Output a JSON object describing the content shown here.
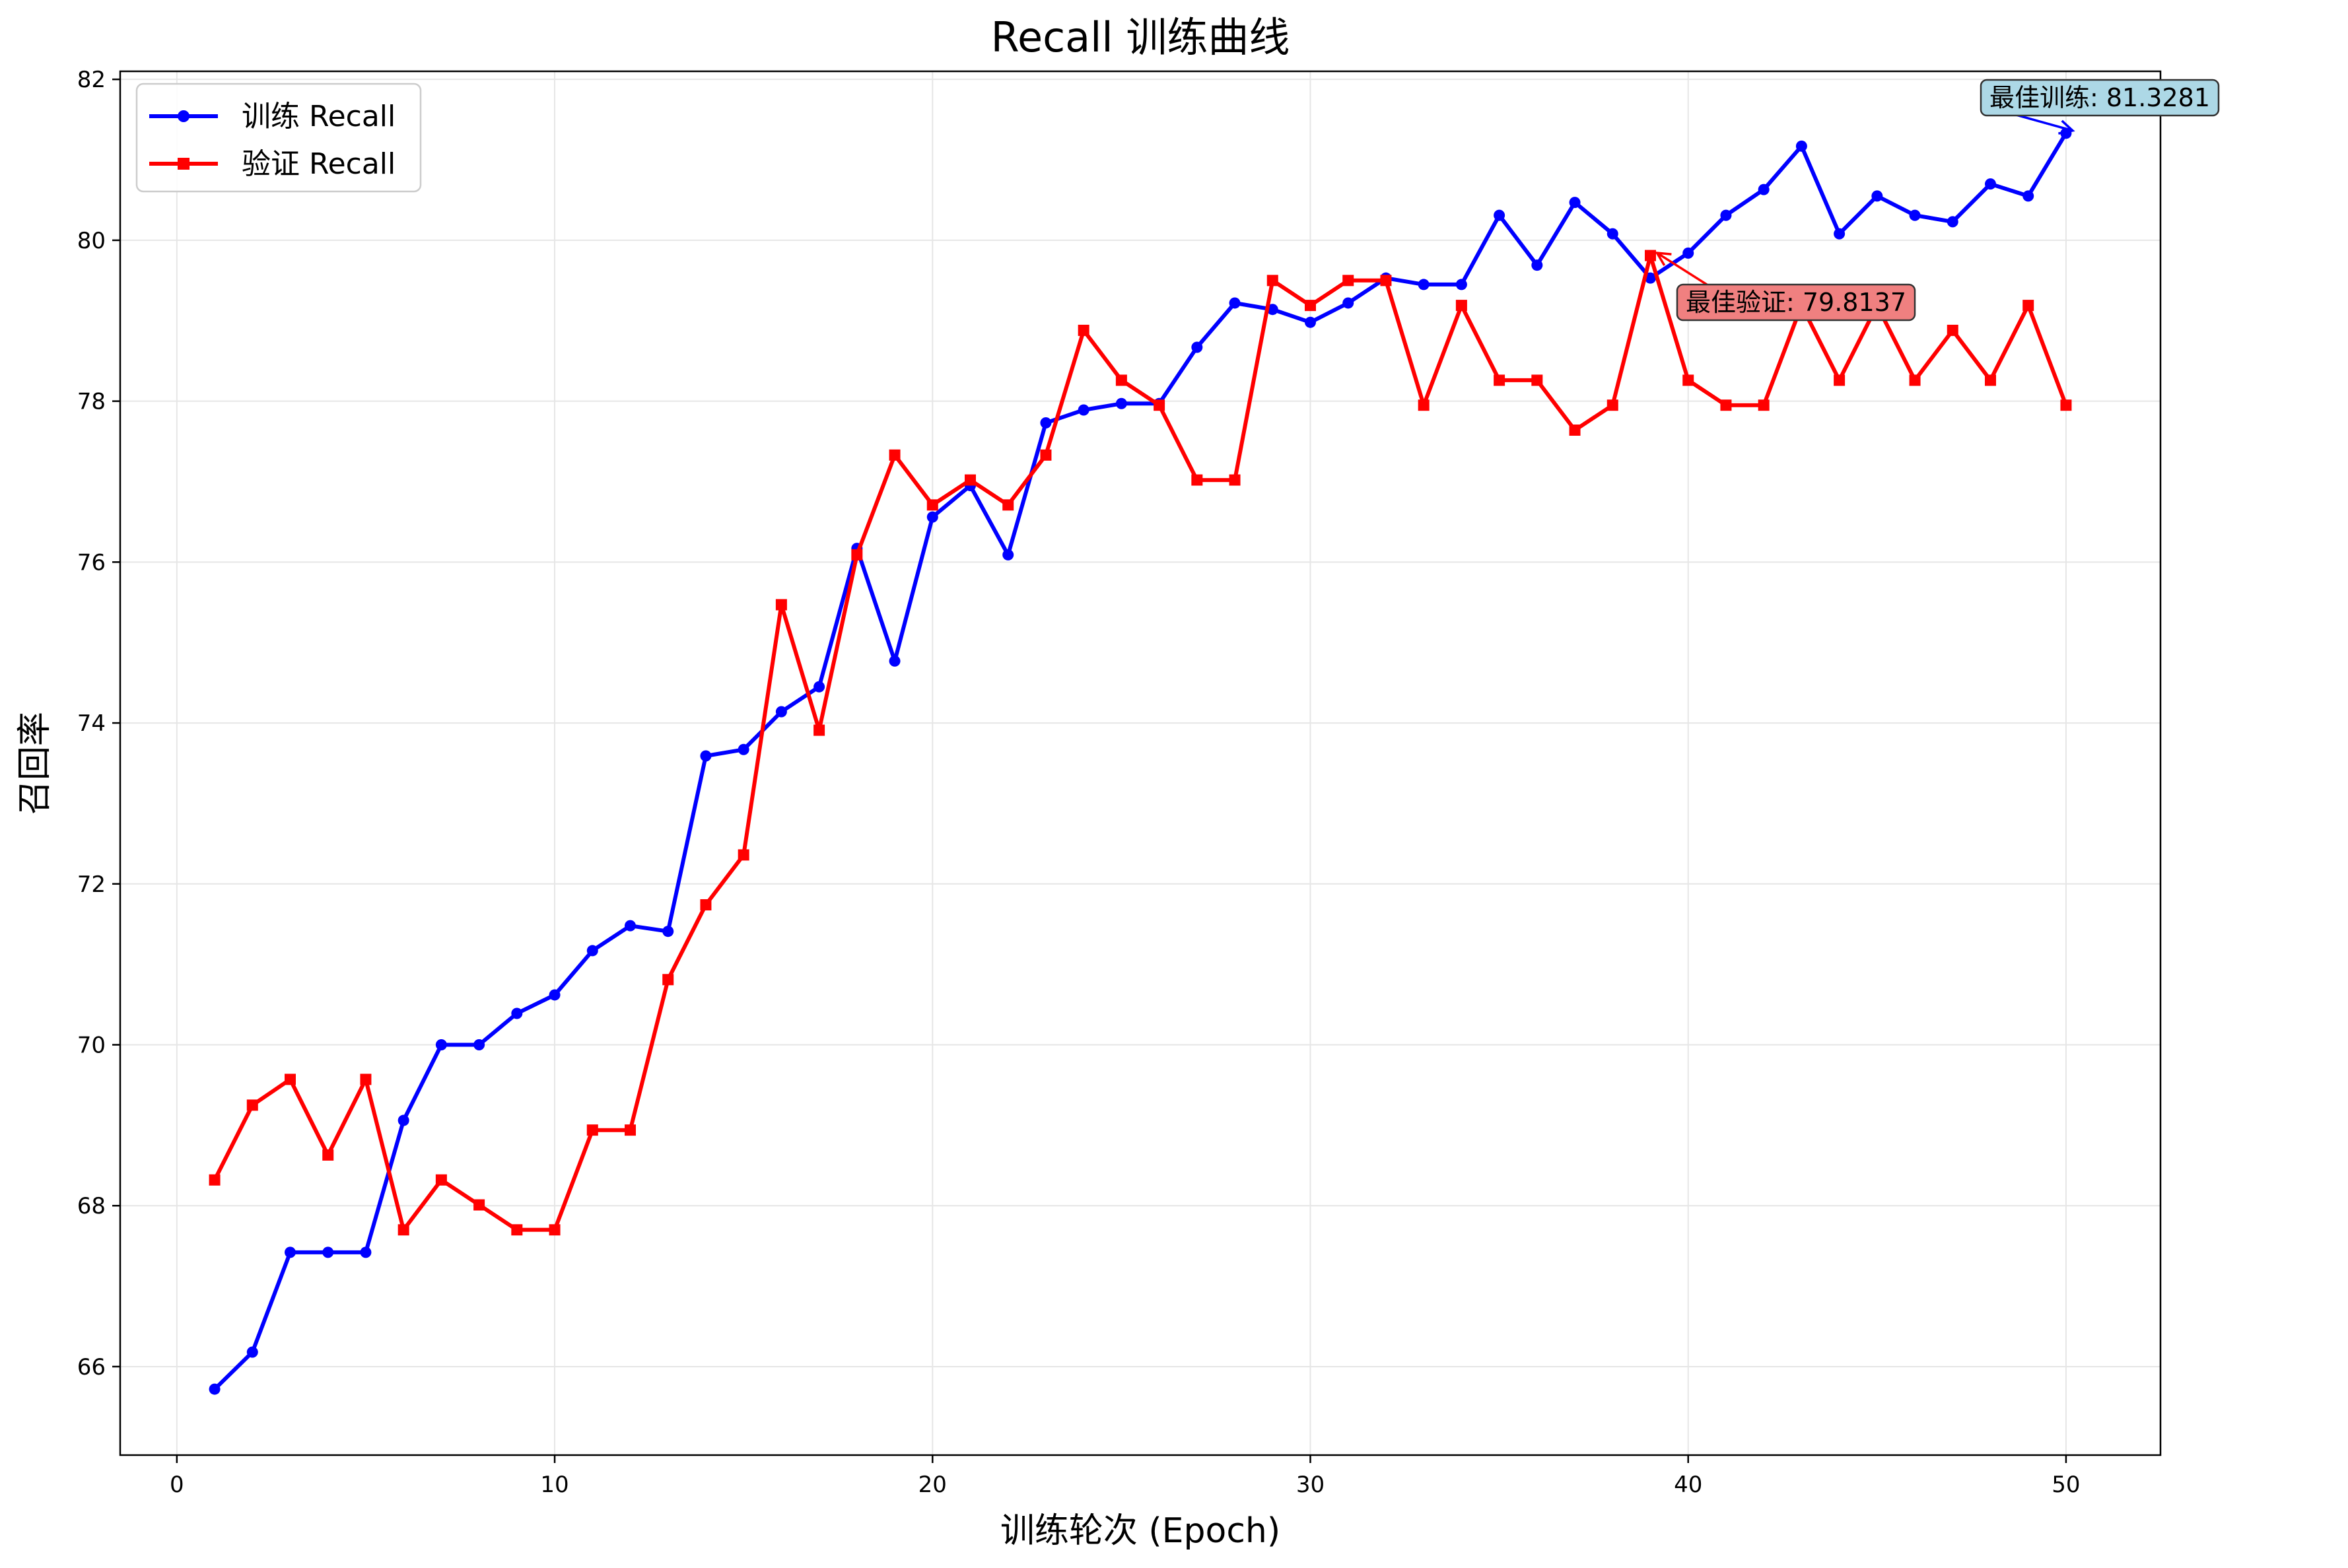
{
  "chart_data": {
    "type": "line",
    "title": "Recall 训练曲线",
    "xlabel": "训练轮次 (Epoch)",
    "ylabel": "召回率",
    "xlim": [
      -1.5,
      52.5
    ],
    "ylim": [
      64.9,
      82.1
    ],
    "xticks": [
      0,
      10,
      20,
      30,
      40,
      50
    ],
    "yticks": [
      66,
      68,
      70,
      72,
      74,
      76,
      78,
      80,
      82
    ],
    "grid": true,
    "legend_position": "upper-left",
    "x": [
      1,
      2,
      3,
      4,
      5,
      6,
      7,
      8,
      9,
      10,
      11,
      12,
      13,
      14,
      15,
      16,
      17,
      18,
      19,
      20,
      21,
      22,
      23,
      24,
      25,
      26,
      27,
      28,
      29,
      30,
      31,
      32,
      33,
      34,
      35,
      36,
      37,
      38,
      39,
      40,
      41,
      42,
      43,
      44,
      45,
      46,
      47,
      48,
      49,
      50
    ],
    "series": [
      {
        "name": "训练 Recall",
        "color": "#0000ff",
        "marker": "circle",
        "values": [
          65.72,
          66.18,
          67.42,
          67.42,
          67.42,
          69.06,
          70.0,
          70.0,
          70.39,
          70.62,
          71.17,
          71.48,
          71.41,
          73.59,
          73.67,
          74.14,
          74.45,
          76.17,
          74.77,
          76.56,
          76.95,
          76.09,
          77.73,
          77.89,
          77.97,
          77.97,
          78.67,
          79.22,
          79.14,
          78.98,
          79.22,
          79.53,
          79.45,
          79.45,
          80.31,
          79.69,
          80.47,
          80.08,
          79.53,
          79.84,
          80.31,
          80.63,
          81.17,
          80.08,
          80.55,
          80.31,
          80.23,
          80.7,
          80.55,
          81.33
        ]
      },
      {
        "name": "验证 Recall",
        "color": "#ff0000",
        "marker": "square",
        "values": [
          68.32,
          69.25,
          69.57,
          68.63,
          69.57,
          67.7,
          68.32,
          68.01,
          67.7,
          67.7,
          68.94,
          68.94,
          70.81,
          71.74,
          72.36,
          75.47,
          73.91,
          76.09,
          77.33,
          76.71,
          77.02,
          76.71,
          77.33,
          78.88,
          78.26,
          77.95,
          77.02,
          77.02,
          79.5,
          79.19,
          79.5,
          79.5,
          77.95,
          79.19,
          78.26,
          78.26,
          77.64,
          77.95,
          79.81,
          78.26,
          77.95,
          77.95,
          79.19,
          78.26,
          79.19,
          78.26,
          78.88,
          78.26,
          79.19,
          77.95
        ]
      }
    ],
    "annotations": [
      {
        "text": "最佳训练: 81.3281",
        "x": 50,
        "y": 81.33,
        "series": 0,
        "box_color": "#add8e6"
      },
      {
        "text": "最佳验证: 79.8137",
        "x": 39,
        "y": 79.81,
        "series": 1,
        "box_color": "#f08080"
      }
    ]
  }
}
